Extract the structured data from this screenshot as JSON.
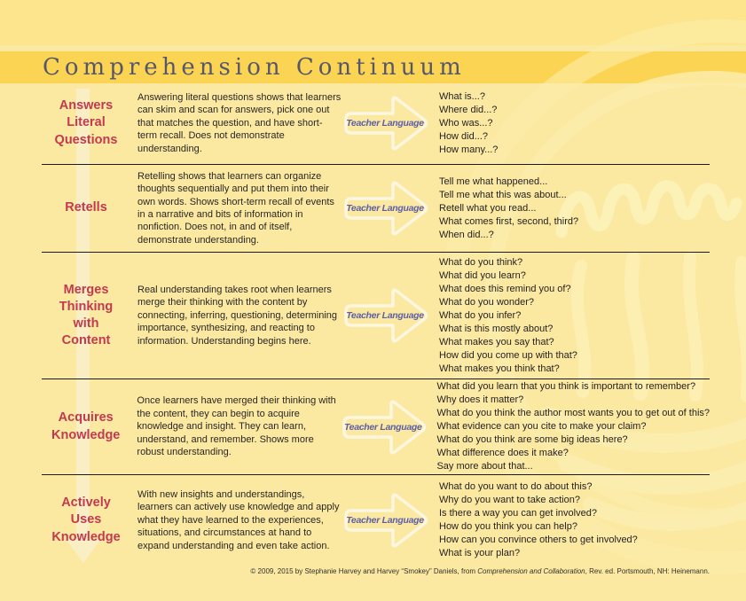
{
  "page": {
    "title": "Comprehension Continuum"
  },
  "teacher_language": {
    "label": "Teacher Language"
  },
  "rows": [
    {
      "label": "Answers\nLiteral\nQuestions",
      "description": "Answering literal questions shows that learners can skim and scan for answers, pick one out that matches the question, and have short-term recall. Does not demonstrate understanding.",
      "questions": [
        "What is...?",
        "Where did...?",
        "Who was...?",
        "How did...?",
        "How many...?"
      ]
    },
    {
      "label": "Retells",
      "description": "Retelling shows that learners can organize thoughts sequentially and put them into their own words. Shows short-term recall of events in a narrative and bits of information in nonfiction. Does not, in and of itself, demonstrate understanding.",
      "questions": [
        "Tell me what happened...",
        "Tell me what this was about...",
        "Retell what you read...",
        "What comes first, second, third?",
        "When did...?"
      ]
    },
    {
      "label": "Merges\nThinking\nwith\nContent",
      "description": "Real understanding takes root when learners merge their thinking with the content by connecting, inferring, questioning, determining importance, synthesizing, and reacting to information. Understanding begins here.",
      "questions": [
        "What do you think?",
        "What did you learn?",
        "What does this remind you of?",
        "What do you wonder?",
        "What do you infer?",
        "What is this mostly about?",
        "What makes you say that?",
        "How did you come up with that?",
        "What makes you think that?"
      ]
    },
    {
      "label": "Acquires\nKnowledge",
      "description": "Once learners have merged their thinking with the content, they can begin to acquire knowledge and insight. They can learn, understand, and remember. Shows more robust understanding.",
      "questions": [
        "What did you learn that you think is important to remember?",
        "Why does it matter?",
        "What do you think the author most wants you to get out of this?",
        "What evidence can you cite to make your claim?",
        "What do you think are some big ideas here?",
        "What difference does it make?",
        "Say more about that..."
      ]
    },
    {
      "label": "Actively\nUses\nKnowledge",
      "description": "With new insights and understandings, learners can actively use knowledge and apply what they have learned to the experiences, situations, and circumstances at hand to expand understanding and even take action.",
      "questions": [
        "What do you want to do about this?",
        "Why do you want to take action?",
        "Is there a way you can get involved?",
        "How do you think you can help?",
        "How can you convince others to get involved?",
        "What is your plan?"
      ]
    }
  ],
  "footer": {
    "prefix": "© 2009, 2015 by Stephanie Harvey and Harvey “Smokey” Daniels, from ",
    "book_title": "Comprehension and Collaboration",
    "suffix": ", Rev. ed. Portsmouth, NH: Heinemann."
  },
  "colors": {
    "page_background": "#FBE9A2",
    "top_band_yellow": "#FCE58C",
    "banner_yellow": "#FCD453",
    "title_gray": "#57576A",
    "accent_red": "#C23950",
    "teacher_blue": "#5C5FA7",
    "divider_black": "#1B1B1B",
    "flow_arrow_cream": "#FAEFC4",
    "arrow_outline_cream": "#FDF7DF",
    "watermark_cream": "#FCF0B4"
  }
}
